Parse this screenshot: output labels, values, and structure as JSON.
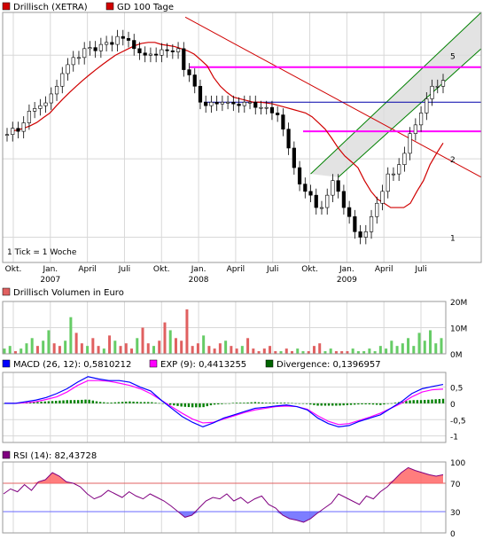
{
  "chart_data": [
    {
      "type": "line",
      "panel": "price",
      "legend": [
        {
          "label": "Drillisch (XETRA)",
          "color": "#d00000"
        },
        {
          "label": "GD 100 Tage",
          "color": "#d00000"
        }
      ],
      "note": "1 Tick = 1 Woche",
      "y_scale": "log",
      "ylim": [
        0.8,
        7.3
      ],
      "y_ticks": [
        {
          "v": 1,
          "label": "1"
        },
        {
          "v": 2,
          "label": "2"
        },
        {
          "v": 5,
          "label": "5"
        }
      ],
      "x_ticks": [
        {
          "label": "Okt.",
          "year": ""
        },
        {
          "label": "Jan.",
          "year": "2007"
        },
        {
          "label": "April",
          "year": ""
        },
        {
          "label": "Juli",
          "year": ""
        },
        {
          "label": "Okt.",
          "year": ""
        },
        {
          "label": "Jan.",
          "year": "2008"
        },
        {
          "label": "April",
          "year": ""
        },
        {
          "label": "Juli",
          "year": ""
        },
        {
          "label": "Okt.",
          "year": ""
        },
        {
          "label": "Jan.",
          "year": "2009"
        },
        {
          "label": "April",
          "year": ""
        },
        {
          "label": "Juli",
          "year": ""
        }
      ],
      "close_series": [
        2.48,
        2.62,
        2.55,
        2.75,
        3.05,
        3.12,
        3.2,
        3.28,
        3.55,
        3.8,
        4.25,
        4.6,
        4.9,
        4.9,
        5.3,
        5.35,
        5.2,
        5.5,
        5.6,
        5.5,
        5.9,
        5.8,
        5.7,
        5.3,
        5.1,
        5.0,
        5.05,
        5.0,
        5.25,
        5.2,
        5.15,
        5.3,
        4.4,
        4.2,
        3.8,
        3.3,
        3.2,
        3.3,
        3.25,
        3.3,
        3.3,
        3.25,
        3.2,
        3.3,
        3.3,
        3.15,
        3.15,
        3.15,
        3.0,
        2.95,
        2.6,
        2.2,
        1.85,
        1.6,
        1.5,
        1.45,
        1.3,
        1.3,
        1.45,
        1.65,
        1.5,
        1.3,
        1.2,
        1.05,
        1.0,
        1.05,
        1.2,
        1.35,
        1.5,
        1.75,
        1.75,
        1.9,
        2.1,
        2.5,
        2.7,
        3.0,
        3.4,
        3.8,
        3.8,
        4.0
      ],
      "ma100_series": [
        2.55,
        2.58,
        2.62,
        2.68,
        2.76,
        2.88,
        3.0,
        3.2,
        3.4,
        3.6,
        3.8,
        4.0,
        4.2,
        4.4,
        4.6,
        4.8,
        5.0,
        5.15,
        5.3,
        5.45,
        5.55,
        5.6,
        5.6,
        5.5,
        5.45,
        5.4,
        5.3,
        5.2,
        5.05,
        4.8,
        4.55,
        4.1,
        3.8,
        3.6,
        3.45,
        3.4,
        3.35,
        3.3,
        3.3,
        3.28,
        3.25,
        3.2,
        3.15,
        3.1,
        3.05,
        3.0,
        2.9,
        2.75,
        2.6,
        2.4,
        2.2,
        2.05,
        1.95,
        1.85,
        1.65,
        1.5,
        1.4,
        1.35,
        1.3,
        1.3,
        1.3,
        1.35,
        1.5,
        1.65,
        1.9,
        2.1,
        2.3
      ],
      "trend_lines": [
        {
          "from": [
            31,
            7.0
          ],
          "to": [
            83,
            1.7
          ],
          "color": "#d00000"
        },
        {
          "from": [
            10,
            3.3
          ],
          "to": [
            83,
            3.3
          ],
          "color": "#0000aa"
        }
      ],
      "support_lines": [
        {
          "v": 4.5,
          "from": 15,
          "color": "#ff00ff"
        },
        {
          "v": 2.55,
          "from": 55,
          "color": "#ff00ff"
        }
      ]
    },
    {
      "type": "bar",
      "panel": "volume",
      "title": "Drillisch Volumen in Euro",
      "y_ticks": [
        "20M",
        "10M",
        "0M"
      ],
      "ylim": [
        0,
        20
      ],
      "values": [
        2,
        3,
        1,
        2,
        4,
        6,
        3,
        5,
        9,
        4,
        3,
        5,
        14,
        8,
        4,
        3,
        6,
        3,
        2,
        7,
        5,
        3,
        4,
        2,
        6,
        10,
        4,
        3,
        5,
        12,
        9,
        6,
        5,
        17,
        3,
        4,
        7,
        3,
        2,
        4,
        5,
        3,
        2,
        3,
        6,
        2,
        1,
        2,
        3,
        1,
        1,
        2,
        1,
        2,
        1,
        1,
        3,
        4,
        1,
        2,
        1,
        1,
        1,
        2,
        1,
        1,
        2,
        1,
        3,
        2,
        5,
        3,
        4,
        6,
        3,
        8,
        5,
        9,
        4,
        6
      ],
      "colors_up": [
        1,
        1,
        0,
        1,
        1,
        1,
        0,
        1,
        1,
        0,
        0,
        1,
        1,
        0,
        0,
        1,
        0,
        0,
        1,
        0,
        1,
        0,
        0,
        0,
        1,
        0,
        0,
        1,
        0,
        0,
        1,
        0,
        0,
        0,
        0,
        0,
        1,
        0,
        0,
        0,
        1,
        0,
        0,
        1,
        0,
        0,
        0,
        0,
        0,
        0,
        1,
        0,
        0,
        1,
        1,
        0,
        0,
        0,
        1,
        1,
        0,
        0,
        0,
        1,
        1,
        1,
        1,
        1,
        1,
        1,
        1,
        1,
        1,
        1,
        1,
        1,
        1,
        1,
        1,
        1
      ]
    },
    {
      "type": "line",
      "panel": "macd",
      "legend": [
        {
          "label": "MACD (26, 12): 0,5810212",
          "color": "#0000ff"
        },
        {
          "label": "EXP (9): 0,4413255",
          "color": "#ff00ff"
        },
        {
          "label": "Divergence: 0,1396957",
          "color": "#008000"
        }
      ],
      "y_ticks": [
        "0,5",
        "0",
        "-0,5",
        "-1"
      ],
      "y_tick_values": [
        0.5,
        0,
        -0.5,
        -1
      ],
      "ylim": [
        -1.2,
        0.95
      ],
      "macd": [
        0.0,
        0.0,
        0.05,
        0.1,
        0.18,
        0.3,
        0.45,
        0.65,
        0.82,
        0.75,
        0.7,
        0.7,
        0.65,
        0.5,
        0.38,
        0.1,
        -0.15,
        -0.4,
        -0.58,
        -0.72,
        -0.6,
        -0.45,
        -0.35,
        -0.25,
        -0.15,
        -0.12,
        -0.08,
        -0.05,
        -0.1,
        -0.2,
        -0.45,
        -0.62,
        -0.72,
        -0.68,
        -0.55,
        -0.45,
        -0.35,
        -0.15,
        0.05,
        0.3,
        0.45,
        0.52,
        0.58
      ],
      "signal": [
        0.0,
        0.0,
        0.02,
        0.05,
        0.12,
        0.2,
        0.35,
        0.55,
        0.7,
        0.7,
        0.68,
        0.62,
        0.55,
        0.45,
        0.3,
        0.1,
        -0.1,
        -0.3,
        -0.48,
        -0.6,
        -0.58,
        -0.48,
        -0.38,
        -0.28,
        -0.2,
        -0.15,
        -0.1,
        -0.08,
        -0.1,
        -0.18,
        -0.38,
        -0.55,
        -0.65,
        -0.62,
        -0.52,
        -0.42,
        -0.3,
        -0.15,
        0.0,
        0.2,
        0.35,
        0.42,
        0.44
      ],
      "divergence": [
        0,
        0,
        0.02,
        0.04,
        0.06,
        0.08,
        0.1,
        0.1,
        0.12,
        0.05,
        0.02,
        0.04,
        0.06,
        0.04,
        0.04,
        0.0,
        -0.05,
        -0.1,
        -0.12,
        -0.12,
        -0.04,
        -0.02,
        0.02,
        0.02,
        0.04,
        0.02,
        0.02,
        0.02,
        0.0,
        -0.02,
        -0.07,
        -0.07,
        -0.07,
        -0.05,
        -0.03,
        -0.03,
        -0.05,
        0.0,
        0.05,
        0.1,
        0.1,
        0.12,
        0.14
      ]
    },
    {
      "type": "line",
      "panel": "rsi",
      "legend": [
        {
          "label": "RSI (14): 82,43728",
          "color": "#800080"
        }
      ],
      "y_ticks": [
        "100",
        "70",
        "30",
        "0"
      ],
      "y_tick_values": [
        100,
        70,
        30,
        0
      ],
      "ylim": [
        0,
        100
      ],
      "upper": 70,
      "lower": 30,
      "values": [
        55,
        62,
        58,
        68,
        60,
        72,
        75,
        85,
        80,
        72,
        70,
        65,
        55,
        48,
        52,
        60,
        55,
        50,
        58,
        52,
        48,
        55,
        50,
        45,
        38,
        30,
        22,
        25,
        35,
        45,
        50,
        48,
        55,
        45,
        50,
        42,
        48,
        52,
        40,
        35,
        25,
        20,
        18,
        15,
        20,
        28,
        35,
        42,
        55,
        50,
        45,
        40,
        52,
        48,
        58,
        65,
        75,
        85,
        92,
        88,
        85,
        82,
        80,
        82
      ]
    }
  ]
}
